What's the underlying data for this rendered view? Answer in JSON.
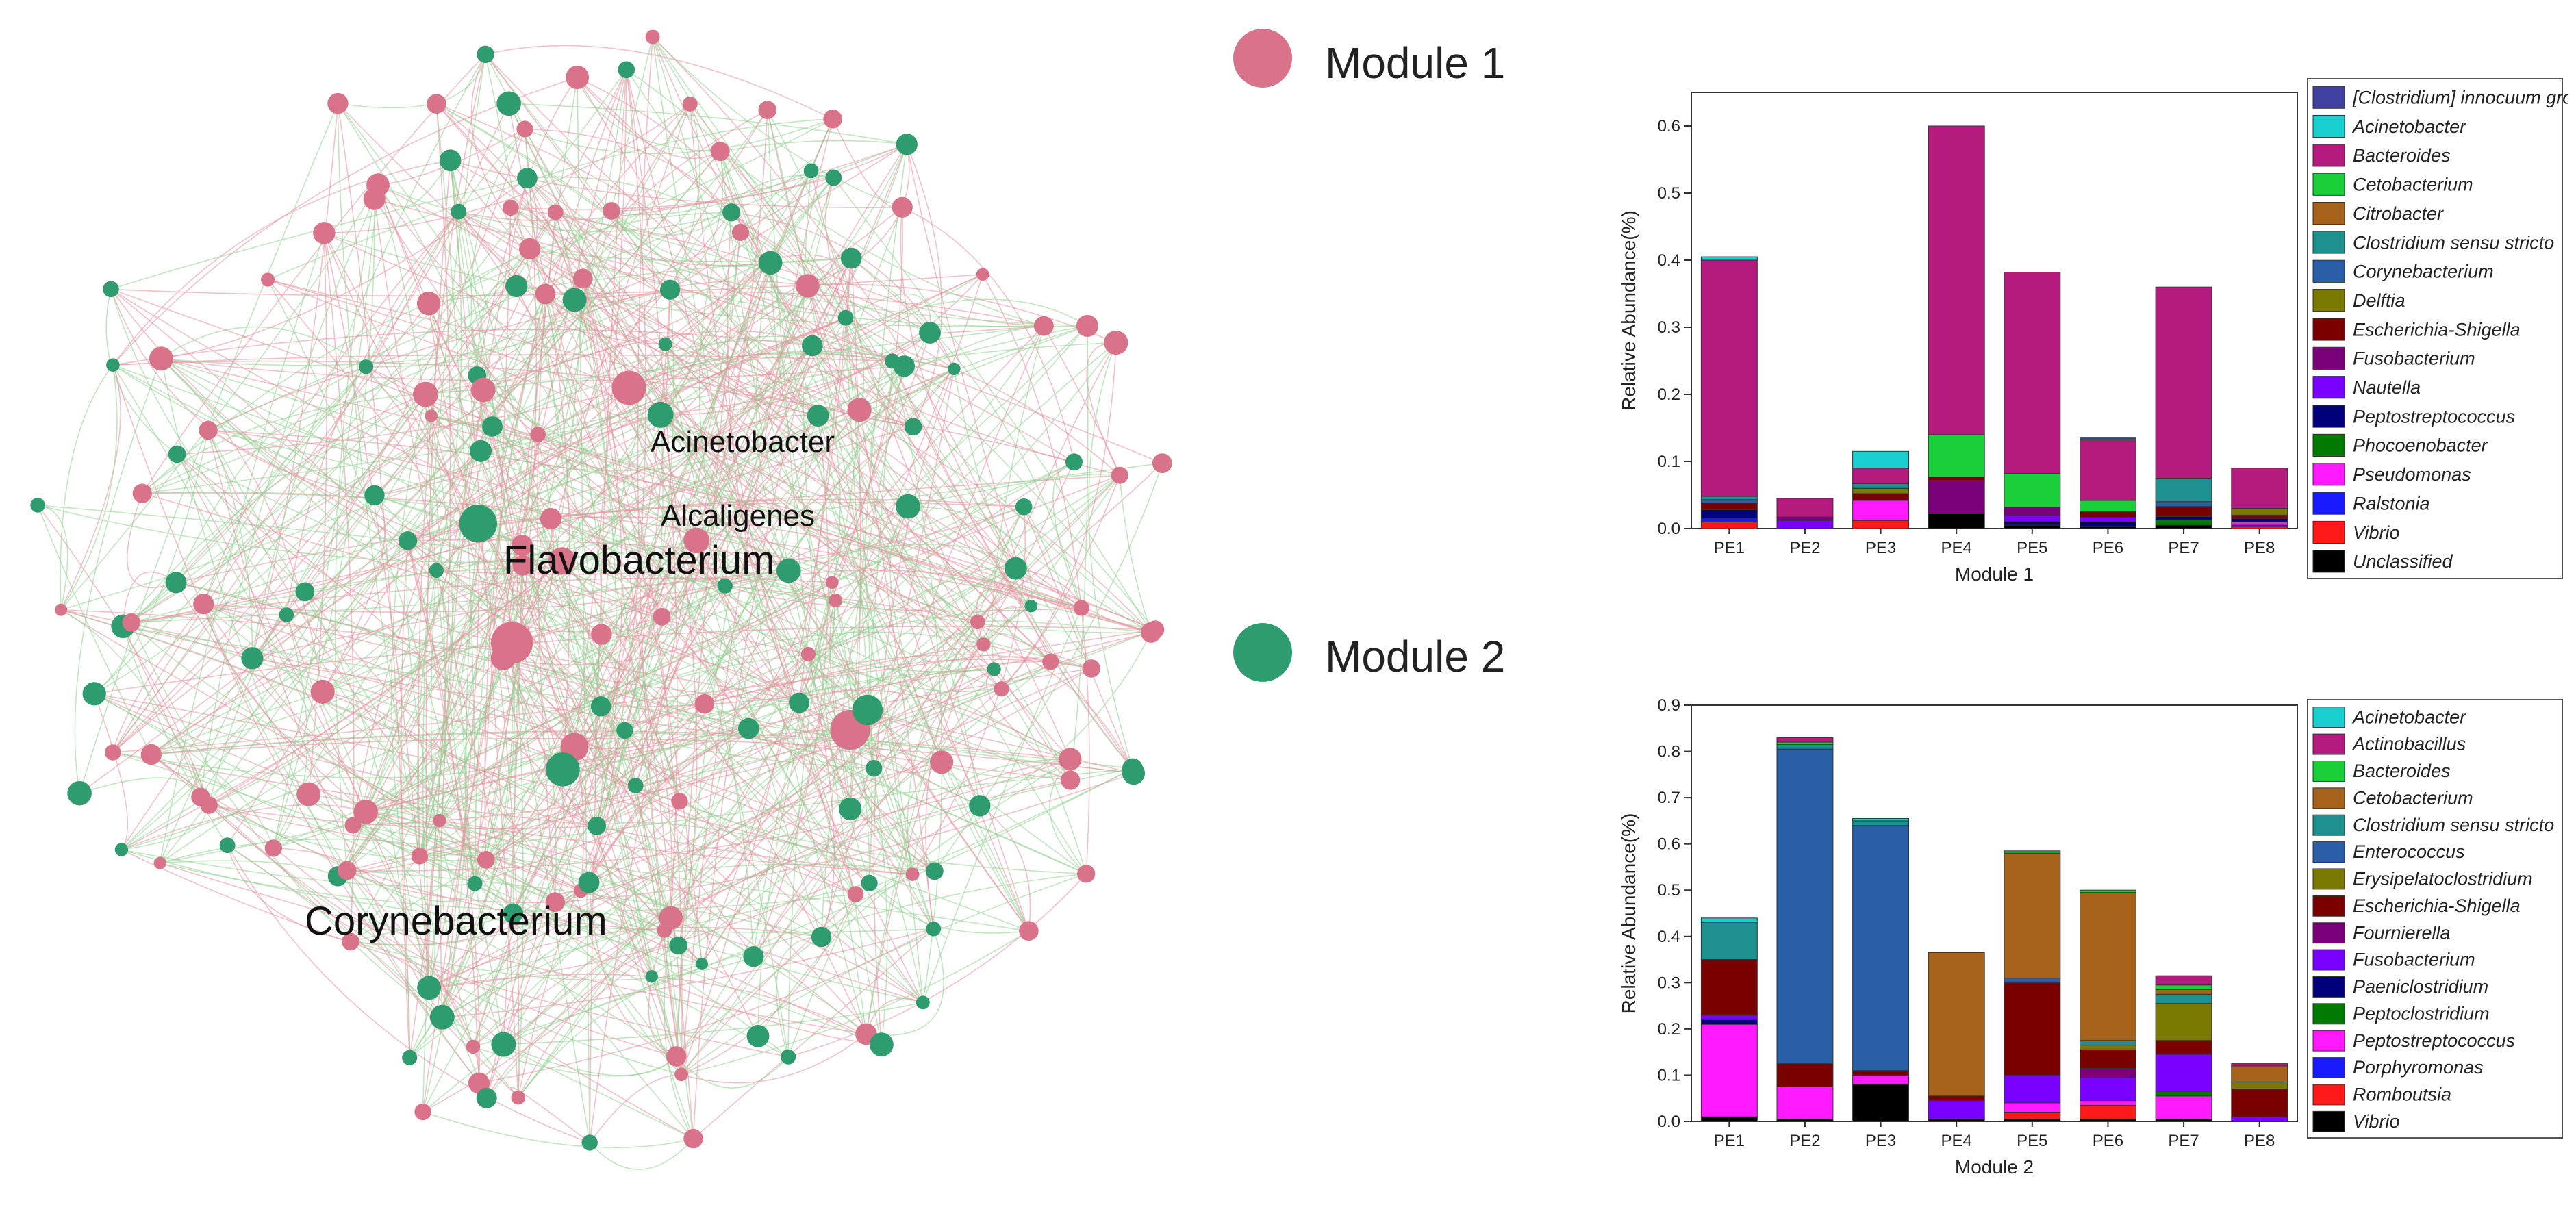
{
  "legend": {
    "module1": {
      "label": "Module 1",
      "color": "#d9738a"
    },
    "module2": {
      "label": "Module 2",
      "color": "#2e9c6e"
    }
  },
  "network": {
    "node_labels": [
      "Acinetobacter",
      "Alcaligenes",
      "Flavobacterium",
      "Corynebacterium"
    ],
    "edge_colors": [
      "#e8909f",
      "#8fd18f"
    ]
  },
  "chart_data": [
    {
      "type": "bar",
      "stacked": true,
      "xlabel": "Module 1",
      "ylabel": "Relative Abundance(%)",
      "ylim": [
        0,
        0.65
      ],
      "yticks": [
        "0.0",
        "0.1",
        "0.2",
        "0.3",
        "0.4",
        "0.5",
        "0.6"
      ],
      "categories": [
        "PE1",
        "PE2",
        "PE3",
        "PE4",
        "PE5",
        "PE6",
        "PE7",
        "PE8"
      ],
      "series": [
        {
          "name": "Unclassified",
          "color": "#000000",
          "values": [
            0.0,
            0.0,
            0.0,
            0.022,
            0.005,
            0.003,
            0.005,
            0.0
          ]
        },
        {
          "name": "Vibrio",
          "color": "#ff1a1a",
          "values": [
            0.01,
            0.0,
            0.012,
            0.0,
            0.0,
            0.0,
            0.0,
            0.003
          ]
        },
        {
          "name": "Ralstonia",
          "color": "#1a1aff",
          "values": [
            0.005,
            0.0,
            0.0,
            0.0,
            0.0,
            0.0,
            0.0,
            0.002
          ]
        },
        {
          "name": "Pseudomonas",
          "color": "#ff1aff",
          "values": [
            0.0,
            0.0,
            0.03,
            0.0,
            0.0,
            0.0,
            0.0,
            0.005
          ]
        },
        {
          "name": "Phocoenobacter",
          "color": "#007a00",
          "values": [
            0.0,
            0.0,
            0.0,
            0.0,
            0.0,
            0.0,
            0.008,
            0.0
          ]
        },
        {
          "name": "Peptostreptococcus",
          "color": "#00007a",
          "values": [
            0.013,
            0.0,
            0.0,
            0.0,
            0.005,
            0.007,
            0.005,
            0.005
          ]
        },
        {
          "name": "Nautella",
          "color": "#7a00ff",
          "values": [
            0.0,
            0.012,
            0.0,
            0.0,
            0.01,
            0.007,
            0.0,
            0.0
          ]
        },
        {
          "name": "Fusobacterium",
          "color": "#7a007a",
          "values": [
            0.0,
            0.005,
            0.0,
            0.05,
            0.012,
            0.0,
            0.0,
            0.0
          ]
        },
        {
          "name": "Escherichia-Shigella",
          "color": "#7a0000",
          "values": [
            0.01,
            0.0,
            0.01,
            0.005,
            0.0,
            0.008,
            0.015,
            0.005
          ]
        },
        {
          "name": "Delftia",
          "color": "#7a7a00",
          "values": [
            0.0,
            0.0,
            0.008,
            0.0,
            0.0,
            0.0,
            0.0,
            0.01
          ]
        },
        {
          "name": "Corynebacterium",
          "color": "#2a5ea6",
          "values": [
            0.005,
            0.0,
            0.0,
            0.0,
            0.0,
            0.0,
            0.007,
            0.0
          ]
        },
        {
          "name": "Clostridium sensu stricto",
          "color": "#1f9090",
          "values": [
            0.005,
            0.0,
            0.007,
            0.0,
            0.0,
            0.0,
            0.035,
            0.0
          ]
        },
        {
          "name": "Citrobacter",
          "color": "#a6621a",
          "values": [
            0.0,
            0.0,
            0.0,
            0.0,
            0.0,
            0.0,
            0.0,
            0.0
          ]
        },
        {
          "name": "Cetobacterium",
          "color": "#1acf3a",
          "values": [
            0.0,
            0.0,
            0.0,
            0.063,
            0.05,
            0.017,
            0.0,
            0.0
          ]
        },
        {
          "name": "Bacteroides",
          "color": "#b51a7f",
          "values": [
            0.352,
            0.028,
            0.023,
            0.46,
            0.3,
            0.09,
            0.285,
            0.06
          ]
        },
        {
          "name": "Acinetobacter",
          "color": "#1acfcf",
          "values": [
            0.005,
            0.0,
            0.025,
            0.0,
            0.0,
            0.0,
            0.0,
            0.0
          ]
        },
        {
          "name": "[Clostridium] innocuum group",
          "color": "#4040a0",
          "values": [
            0.0,
            0.0,
            0.0,
            0.0,
            0.0,
            0.003,
            0.0,
            0.0
          ]
        }
      ]
    },
    {
      "type": "bar",
      "stacked": true,
      "xlabel": "Module 2",
      "ylabel": "Relative Abundance(%)",
      "ylim": [
        0,
        0.9
      ],
      "yticks": [
        "0.0",
        "0.1",
        "0.2",
        "0.3",
        "0.4",
        "0.5",
        "0.6",
        "0.7",
        "0.8",
        "0.9"
      ],
      "categories": [
        "PE1",
        "PE2",
        "PE3",
        "PE4",
        "PE5",
        "PE6",
        "PE7",
        "PE8"
      ],
      "series": [
        {
          "name": "Vibrio",
          "color": "#000000",
          "values": [
            0.01,
            0.005,
            0.08,
            0.005,
            0.005,
            0.005,
            0.005,
            0.0
          ]
        },
        {
          "name": "Romboutsia",
          "color": "#ff1a1a",
          "values": [
            0.0,
            0.0,
            0.0,
            0.0,
            0.015,
            0.03,
            0.0,
            0.0
          ]
        },
        {
          "name": "Porphyromonas",
          "color": "#1a1aff",
          "values": [
            0.0,
            0.0,
            0.0,
            0.0,
            0.0,
            0.0,
            0.0,
            0.0
          ]
        },
        {
          "name": "Peptostreptococcus",
          "color": "#ff1aff",
          "values": [
            0.2,
            0.07,
            0.02,
            0.0,
            0.02,
            0.01,
            0.05,
            0.0
          ]
        },
        {
          "name": "Peptoclostridium",
          "color": "#007a00",
          "values": [
            0.0,
            0.0,
            0.0,
            0.0,
            0.0,
            0.0,
            0.01,
            0.0
          ]
        },
        {
          "name": "Paeniclostridium",
          "color": "#00007a",
          "values": [
            0.01,
            0.0,
            0.0,
            0.0,
            0.0,
            0.0,
            0.0,
            0.0
          ]
        },
        {
          "name": "Fusobacterium",
          "color": "#7a00ff",
          "values": [
            0.01,
            0.0,
            0.0,
            0.04,
            0.06,
            0.05,
            0.08,
            0.01
          ]
        },
        {
          "name": "Fournierella",
          "color": "#7a007a",
          "values": [
            0.0,
            0.0,
            0.0,
            0.0,
            0.0,
            0.02,
            0.0,
            0.0
          ]
        },
        {
          "name": "Escherichia-Shigella",
          "color": "#7a0000",
          "values": [
            0.12,
            0.05,
            0.01,
            0.01,
            0.2,
            0.04,
            0.03,
            0.06
          ]
        },
        {
          "name": "Erysipelatoclostridium",
          "color": "#7a7a00",
          "values": [
            0.0,
            0.0,
            0.0,
            0.0,
            0.0,
            0.01,
            0.08,
            0.015
          ]
        },
        {
          "name": "Enterococcus",
          "color": "#2a5ea6",
          "values": [
            0.0,
            0.68,
            0.53,
            0.0,
            0.01,
            0.0,
            0.0,
            0.0
          ]
        },
        {
          "name": "Clostridium sensu stricto",
          "color": "#1f9090",
          "values": [
            0.08,
            0.01,
            0.01,
            0.0,
            0.0,
            0.01,
            0.02,
            0.0
          ]
        },
        {
          "name": "Cetobacterium",
          "color": "#a6621a",
          "values": [
            0.0,
            0.0,
            0.0,
            0.31,
            0.27,
            0.32,
            0.01,
            0.035
          ]
        },
        {
          "name": "Bacteroides",
          "color": "#1acf3a",
          "values": [
            0.0,
            0.005,
            0.0,
            0.0,
            0.005,
            0.005,
            0.01,
            0.0
          ]
        },
        {
          "name": "Actinobacillus",
          "color": "#b51a7f",
          "values": [
            0.0,
            0.01,
            0.0,
            0.0,
            0.0,
            0.0,
            0.02,
            0.005
          ]
        },
        {
          "name": "Acinetobacter",
          "color": "#1acfcf",
          "values": [
            0.01,
            0.0,
            0.005,
            0.0,
            0.0,
            0.0,
            0.0,
            0.0
          ]
        }
      ]
    }
  ]
}
